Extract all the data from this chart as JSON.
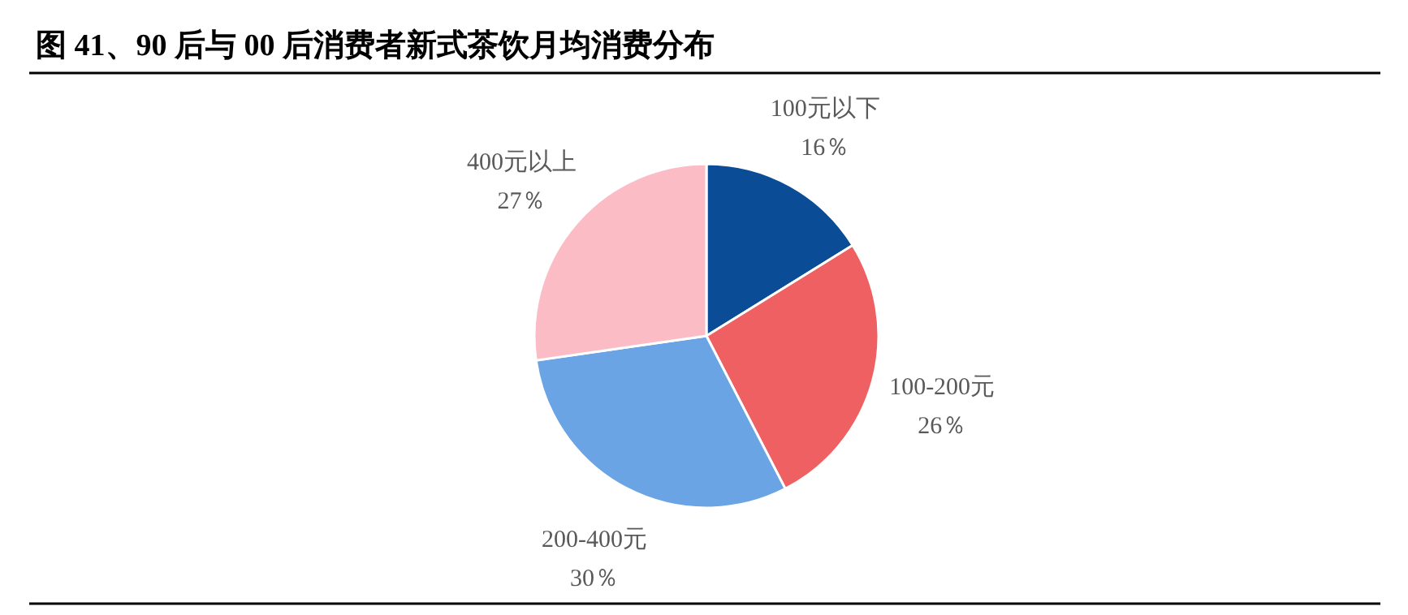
{
  "chart_data": {
    "type": "pie",
    "title": "图 41、90 后与 00 后消费者新式茶饮月均消费分布",
    "categories": [
      "100元以下",
      "100-200元",
      "200-400元",
      "400元以上"
    ],
    "values": [
      16,
      26,
      30,
      27
    ],
    "value_labels": [
      "16％",
      "26％",
      "30％",
      "27％"
    ],
    "colors": [
      "#0b4c97",
      "#ef6062",
      "#6aa4e4",
      "#fcbcc6"
    ]
  }
}
